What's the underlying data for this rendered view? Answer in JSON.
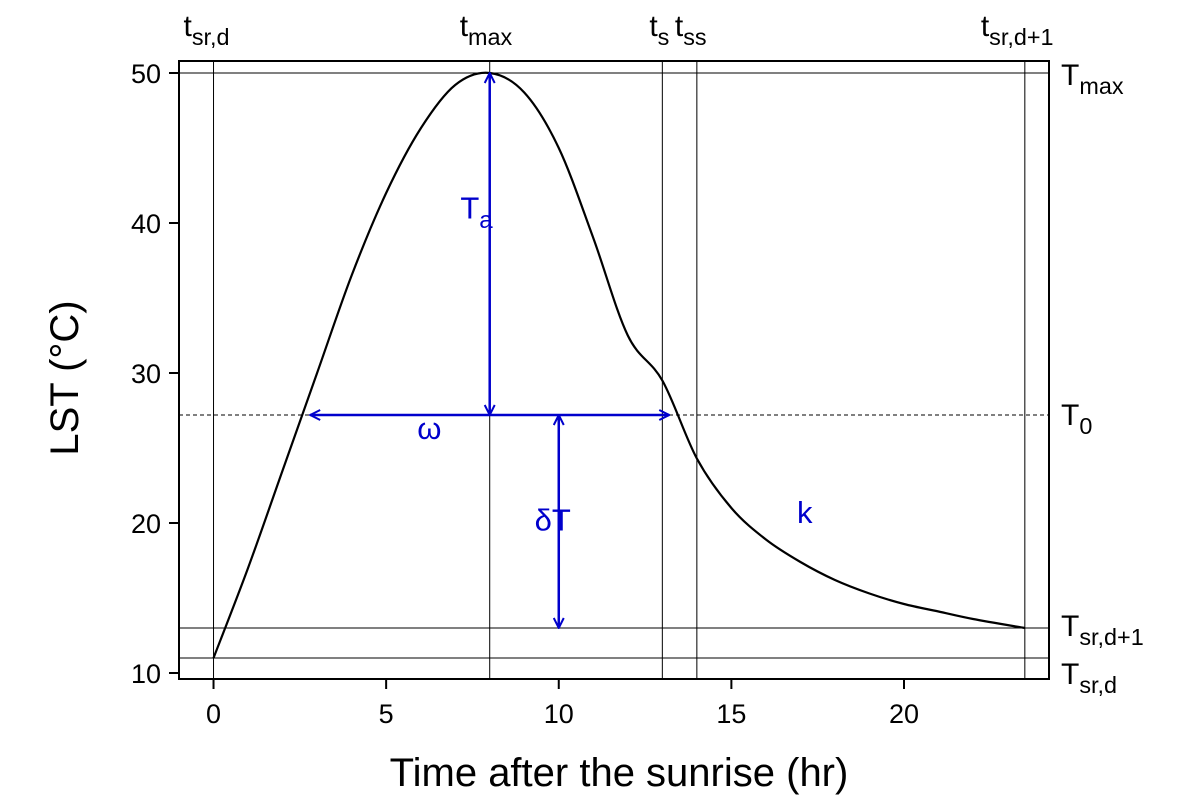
{
  "chart_data": {
    "type": "line",
    "xlabel": "Time after the sunrise (hr)",
    "ylabel": "LST (°C)",
    "xlim": [
      -1,
      24.2
    ],
    "ylim": [
      9.6,
      50.8
    ],
    "x_ticks": [
      0,
      5,
      10,
      15,
      20
    ],
    "y_ticks": [
      10,
      20,
      30,
      40,
      50
    ],
    "grid": false,
    "legend": "none",
    "colors": {
      "curve": "#000000",
      "annotation": "#0000CC"
    },
    "series": [
      {
        "x": [
          0,
          1,
          2,
          3,
          4,
          5,
          6,
          7,
          8,
          9,
          10,
          11,
          12,
          13,
          14,
          15,
          16,
          17,
          18,
          19,
          20,
          21,
          22,
          23.5
        ],
        "y": [
          11.0,
          17.0,
          23.5,
          30.0,
          36.5,
          42.0,
          46.3,
          49.2,
          50.0,
          48.7,
          45.0,
          39.0,
          32.5,
          29.5,
          24.3,
          21.0,
          18.9,
          17.4,
          16.2,
          15.3,
          14.6,
          14.1,
          13.6,
          13.0
        ]
      }
    ],
    "top_markers": [
      {
        "x": 0,
        "base": "t",
        "sub": "sr,d"
      },
      {
        "x": 8,
        "base": "t",
        "sub": "max"
      },
      {
        "x": 13,
        "base": "t",
        "sub": "s"
      },
      {
        "x": 14,
        "base": "t",
        "sub": "ss"
      },
      {
        "x": 23.5,
        "base": "t",
        "sub": "sr,d+1"
      }
    ],
    "right_markers": [
      {
        "y": 50,
        "base": "T",
        "sub": "max"
      },
      {
        "y": 27.2,
        "base": "T",
        "sub": "0",
        "dashed": true
      },
      {
        "y": 13,
        "base": "T",
        "sub": "sr,d+1"
      },
      {
        "y": 11,
        "base": "T",
        "sub": "sr,d"
      }
    ],
    "annotations": [
      {
        "name": "Ta",
        "base": "T",
        "sub": "a",
        "x": 7.15,
        "y": 40.3
      },
      {
        "name": "omega",
        "base": "ω",
        "sub": "",
        "x": 5.9,
        "y": 25.6
      },
      {
        "name": "deltaT",
        "base": "δT",
        "sub": "",
        "x": 9.3,
        "y": 19.5
      },
      {
        "name": "k",
        "base": "k",
        "sub": "",
        "x": 16.9,
        "y": 20.0
      }
    ],
    "arrows": [
      {
        "name": "Ta-arrow",
        "x1": 8,
        "y1": 27.2,
        "x2": 8,
        "y2": 50
      },
      {
        "name": "omega-arrow",
        "x1": 2.8,
        "y1": 27.2,
        "x2": 13.2,
        "y2": 27.2
      },
      {
        "name": "deltaT-arrow",
        "x1": 10,
        "y1": 27.2,
        "x2": 10,
        "y2": 13
      }
    ]
  }
}
